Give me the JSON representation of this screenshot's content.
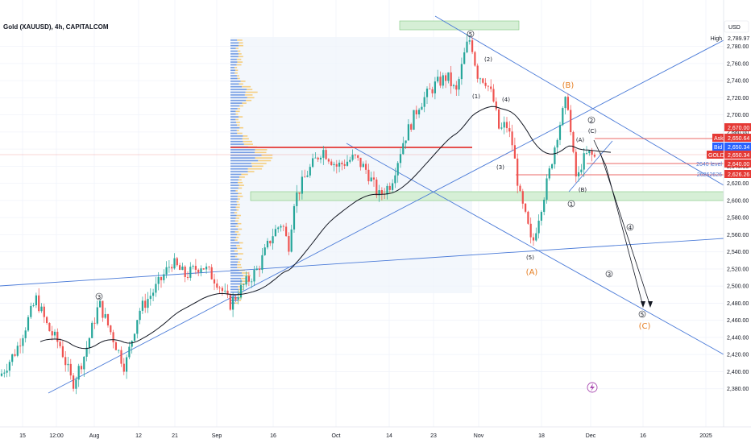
{
  "header": {
    "title": "Gold (XAUUSD), 4h, CAPITALCOM",
    "currency": "USD"
  },
  "colors": {
    "up": "#26a69a",
    "down": "#ef5350",
    "trendline": "#4b7bd8",
    "ma": "#131722",
    "zone": "#c9e8c9",
    "volume_buy": "#4a7ddb",
    "volume_sell": "#f5c76a",
    "orange": "#e67e22",
    "red_line": "#e53935"
  },
  "chart_data": {
    "type": "candlestick",
    "title": "Gold (XAUUSD), 4h, CAPITALCOM",
    "ylim": [
      2368,
      2800
    ],
    "y_ticks": [
      2380,
      2400,
      2420,
      2440,
      2460,
      2480,
      2500,
      2520,
      2540,
      2560,
      2580,
      2600,
      2620,
      2640,
      2660,
      2680,
      2700,
      2720,
      2740,
      2760,
      2780
    ],
    "y_tick_labels": [
      "2,380.00",
      "2,400.00",
      "2,420.00",
      "2,440.00",
      "2,460.00",
      "2,480.00",
      "2,500.00",
      "2,520.00",
      "2,540.00",
      "2,560.00",
      "2,580.00",
      "2,600.00",
      "2,620.00",
      "2,640.00",
      "2,660.00",
      "2,680.00",
      "2,700.00",
      "2,720.00",
      "2,740.00",
      "2,760.00",
      "2,780.00"
    ],
    "x_ticks": [
      "15",
      "12:00",
      "Aug",
      "12",
      "21",
      "Sep",
      "16",
      "Oct",
      "14",
      "23",
      "Nov",
      "18",
      "Dec",
      "16",
      "2025"
    ],
    "price_tags": [
      {
        "label": "High",
        "value": "2,789.97"
      },
      {
        "label": "",
        "value": "2,670.00"
      },
      {
        "label": "Ask",
        "value": "2,650.64"
      },
      {
        "label": "Bid",
        "value": "2,650.34"
      },
      {
        "label": "GOLD",
        "value": "2,650.34"
      },
      {
        "label": "",
        "value": "2,640.00"
      },
      {
        "label": "2640 level",
        "value": ""
      },
      {
        "label": "26262626",
        "value": "2,626.26"
      }
    ],
    "wave_labels": [
      "5",
      "(2)",
      "(1)",
      "(4)",
      "(3)",
      "(5)",
      "(A)",
      "(B)",
      "2",
      "(C)",
      "(A)",
      "(B)",
      "1",
      "(C)",
      "4",
      "3",
      "5",
      "(C)",
      "3"
    ],
    "annotations": [
      "(A)",
      "(B)",
      "(C)"
    ],
    "zones": [
      {
        "from": 2790,
        "to": 2803
      },
      {
        "from": 2597,
        "to": 2607
      }
    ],
    "key_levels": [
      2670,
      2650.5,
      2640,
      2626.26
    ]
  }
}
